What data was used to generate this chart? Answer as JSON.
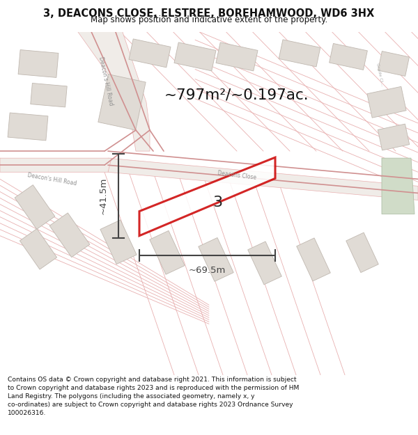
{
  "title_line1": "3, DEACONS CLOSE, ELSTREE, BOREHAMWOOD, WD6 3HX",
  "title_line2": "Map shows position and indicative extent of the property.",
  "area_text": "~797m²/~0.197ac.",
  "width_label": "~69.5m",
  "height_label": "~41.5m",
  "plot_number": "3",
  "footer_text": "Contains OS data © Crown copyright and database right 2021. This information is subject to Crown copyright and database rights 2023 and is reproduced with the permission of HM Land Registry. The polygons (including the associated geometry, namely x, y co-ordinates) are subject to Crown copyright and database rights 2023 Ordnance Survey 100026316.",
  "map_bg": "#f5f3f0",
  "plot_fill": "none",
  "plot_edge": "#cc0000",
  "road_fill": "#f0ece8",
  "road_edge": "#e8b0b0",
  "building_fill": "#e0dbd5",
  "building_edge": "#c0b8b0",
  "green_fill": "#d0dcc8",
  "green_edge": "#b0c0a8",
  "title_bg": "#ffffff",
  "footer_bg": "#ffffff",
  "dim_color": "#444444",
  "road_label_color": "#909090",
  "plot_line_color": "#e8b0b0"
}
